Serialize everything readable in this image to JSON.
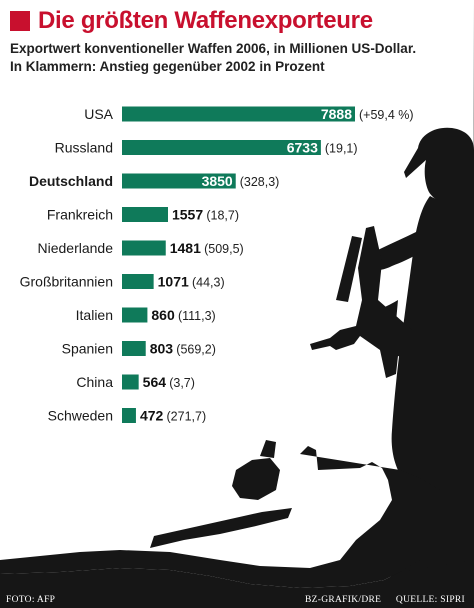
{
  "title": "Die größten Waffenexporteure",
  "subtitle_line1": "Exportwert konventioneller Waffen 2006, in Millionen US-Dollar.",
  "subtitle_line2": "In Klammern: Anstieg gegenüber 2002 in Prozent",
  "colors": {
    "accent": "#c8102e",
    "bar": "#0f7a5a",
    "silhouette": "#161616"
  },
  "chart_data": {
    "type": "bar",
    "orientation": "horizontal",
    "title": "Die größten Waffenexporteure",
    "subtitle": "Exportwert konventioneller Waffen 2006, in Millionen US-Dollar. In Klammern: Anstieg gegenüber 2002 in Prozent",
    "categories": [
      "USA",
      "Russland",
      "Deutschland",
      "Frankreich",
      "Niederlande",
      "Großbritannien",
      "Italien",
      "Spanien",
      "China",
      "Schweden"
    ],
    "values": [
      7888,
      6733,
      3850,
      1557,
      1481,
      1071,
      860,
      803,
      564,
      472
    ],
    "value_labels": [
      "7888",
      "6733",
      "3850",
      "1557",
      "1481",
      "1071",
      "860",
      "803",
      "564",
      "472"
    ],
    "change_labels": [
      "(+59,4 %)",
      "(19,1)",
      "(328,3)",
      "(18,7)",
      "(509,5)",
      "(44,3)",
      "(111,3)",
      "(569,2)",
      "(3,7)",
      "(271,7)"
    ],
    "highlighted_category": "Deutschland",
    "xlim": [
      0,
      7888
    ],
    "grid": false
  },
  "credits": {
    "photo": "Foto: AFP",
    "graphic": "BZ-Grafik/dre",
    "source": "Quelle: SIPRI"
  }
}
